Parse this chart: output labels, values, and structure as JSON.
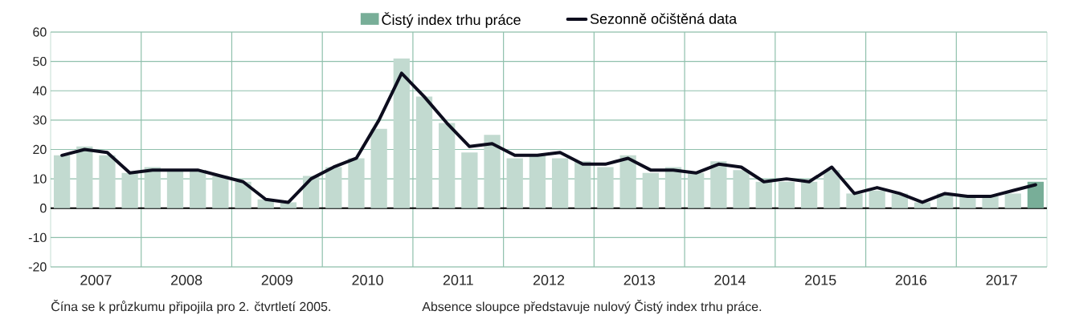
{
  "chart_data": {
    "type": "bar",
    "x": [
      2007.125,
      2007.375,
      2007.625,
      2007.875,
      2008.125,
      2008.375,
      2008.625,
      2008.875,
      2009.125,
      2009.375,
      2009.625,
      2009.875,
      2010.125,
      2010.375,
      2010.625,
      2010.875,
      2011.125,
      2011.375,
      2011.625,
      2011.875,
      2012.125,
      2012.375,
      2012.625,
      2012.875,
      2013.125,
      2013.375,
      2013.625,
      2013.875,
      2014.125,
      2014.375,
      2014.625,
      2014.875,
      2015.125,
      2015.375,
      2015.625,
      2015.875,
      2016.125,
      2016.375,
      2016.625,
      2016.875,
      2017.125,
      2017.375,
      2017.625,
      2017.875
    ],
    "series": [
      {
        "name": "Čistý index trhu práce",
        "color": "#78ae98",
        "colors": [
          "#c2dad0",
          "#c2dad0",
          "#c2dad0",
          "#c2dad0",
          "#c2dad0",
          "#c2dad0",
          "#c2dad0",
          "#c2dad0",
          "#c2dad0",
          "#c2dad0",
          "#c2dad0",
          "#c2dad0",
          "#c2dad0",
          "#c2dad0",
          "#c2dad0",
          "#c2dad0",
          "#c2dad0",
          "#c2dad0",
          "#c2dad0",
          "#c2dad0",
          "#c2dad0",
          "#c2dad0",
          "#c2dad0",
          "#c2dad0",
          "#c2dad0",
          "#c2dad0",
          "#c2dad0",
          "#c2dad0",
          "#c2dad0",
          "#c2dad0",
          "#c2dad0",
          "#c2dad0",
          "#c2dad0",
          "#c2dad0",
          "#c2dad0",
          "#c2dad0",
          "#c2dad0",
          "#c2dad0",
          "#c2dad0",
          "#c2dad0",
          "#c2dad0",
          "#c2dad0",
          "#c2dad0",
          "#78ae98"
        ],
        "values": [
          18,
          21,
          18,
          12,
          14,
          13,
          13,
          11,
          9,
          3,
          2,
          11,
          14,
          17,
          27,
          51,
          38,
          29,
          19,
          25,
          17,
          18,
          17,
          16,
          14,
          18,
          12,
          14,
          12,
          16,
          13,
          9,
          9,
          9,
          13,
          5,
          6,
          5,
          2,
          5,
          4,
          4,
          5,
          9
        ]
      },
      {
        "name": "Sezonně očištěná data",
        "type": "line",
        "color": "#0d0d1e",
        "values": [
          18,
          20,
          19,
          12,
          13,
          13,
          13,
          11,
          9,
          3,
          2,
          10,
          14,
          17,
          30,
          46,
          38,
          29,
          21,
          22,
          18,
          18,
          19,
          15,
          15,
          17,
          13,
          13,
          12,
          15,
          14,
          9,
          10,
          9,
          14,
          5,
          7,
          5,
          2,
          5,
          4,
          4,
          6,
          8
        ]
      }
    ],
    "xlim": [
      2007,
      2018
    ],
    "xticks": [
      {
        "value": 2007.5,
        "label": "2007"
      },
      {
        "value": 2008,
        "label": null
      },
      {
        "value": 2008.5,
        "label": "2008"
      },
      {
        "value": 2009,
        "label": null
      },
      {
        "value": 2009.5,
        "label": "2009"
      },
      {
        "value": 2010,
        "label": null
      },
      {
        "value": 2010.5,
        "label": "2010"
      },
      {
        "value": 2011,
        "label": null
      },
      {
        "value": 2011.5,
        "label": "2011"
      },
      {
        "value": 2012,
        "label": null
      },
      {
        "value": 2012.5,
        "label": "2012"
      },
      {
        "value": 2013,
        "label": null
      },
      {
        "value": 2013.5,
        "label": "2013"
      },
      {
        "value": 2014,
        "label": null
      },
      {
        "value": 2014.5,
        "label": "2014"
      },
      {
        "value": 2015,
        "label": null
      },
      {
        "value": 2015.5,
        "label": "2015"
      },
      {
        "value": 2016,
        "label": null
      },
      {
        "value": 2016.5,
        "label": "2016"
      },
      {
        "value": 2017,
        "label": null
      },
      {
        "value": 2017.5,
        "label": "2017"
      }
    ],
    "ylim": [
      -20,
      60
    ],
    "yticks": [
      -20,
      -10,
      0,
      10,
      20,
      30,
      40,
      50,
      60
    ],
    "grid": true,
    "legend": "top",
    "annotations": [
      "Čína se k průzkumu připojila pro 2. čtvrtletí 2005.",
      "Absence sloupce představuje nulový Čistý index trhu práce."
    ]
  }
}
